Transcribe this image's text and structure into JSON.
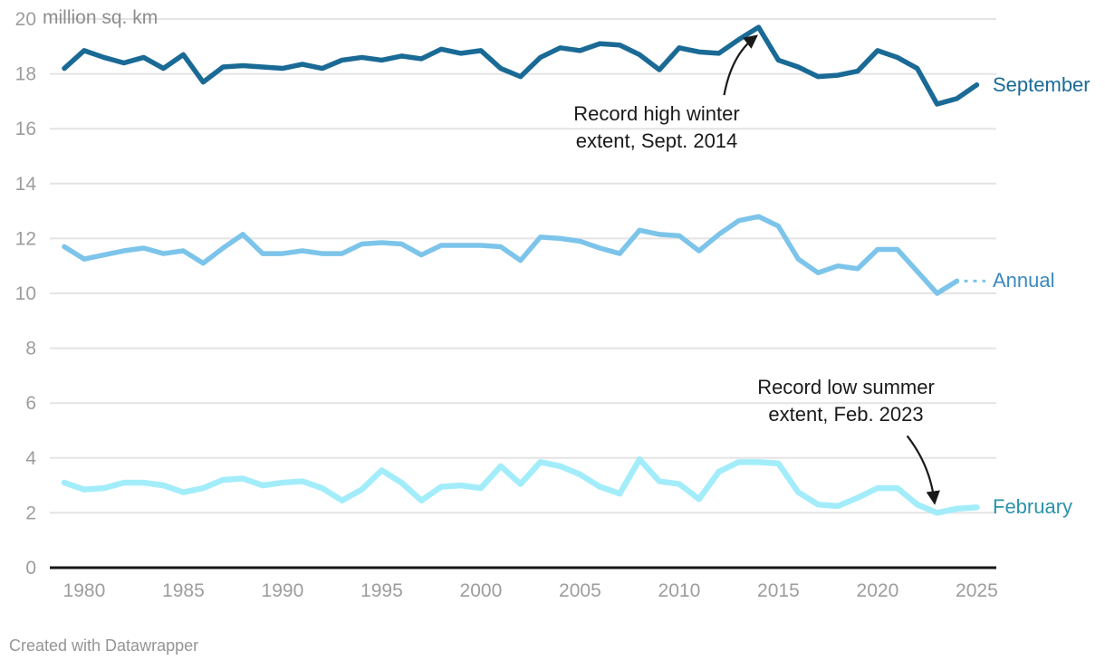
{
  "chart_data": {
    "type": "line",
    "unit_label": "million sq. km",
    "ylim": [
      0,
      20
    ],
    "yticks": [
      0,
      2,
      4,
      6,
      8,
      10,
      12,
      14,
      16,
      18,
      20
    ],
    "xticks": [
      1980,
      1985,
      1990,
      1995,
      2000,
      2005,
      2010,
      2015,
      2020,
      2025
    ],
    "grid": true,
    "label_position": "right",
    "x": [
      1979,
      1980,
      1981,
      1982,
      1983,
      1984,
      1985,
      1986,
      1987,
      1988,
      1989,
      1990,
      1991,
      1992,
      1993,
      1994,
      1995,
      1996,
      1997,
      1998,
      1999,
      2000,
      2001,
      2002,
      2003,
      2004,
      2005,
      2006,
      2007,
      2008,
      2009,
      2010,
      2011,
      2012,
      2013,
      2014,
      2015,
      2016,
      2017,
      2018,
      2019,
      2020,
      2021,
      2022,
      2023,
      2024,
      2025
    ],
    "series": [
      {
        "name": "September",
        "color": "#1A6A96",
        "label_color": "#1A6A96",
        "values": [
          18.2,
          18.85,
          18.6,
          18.4,
          18.6,
          18.2,
          18.7,
          17.7,
          18.25,
          18.3,
          18.25,
          18.2,
          18.35,
          18.2,
          18.5,
          18.6,
          18.5,
          18.65,
          18.55,
          18.9,
          18.75,
          18.85,
          18.2,
          17.9,
          18.6,
          18.95,
          18.85,
          19.1,
          19.05,
          18.7,
          18.15,
          18.95,
          18.8,
          18.75,
          19.25,
          19.7,
          18.5,
          18.25,
          17.9,
          17.95,
          18.1,
          18.85,
          18.6,
          18.2,
          16.9,
          17.1,
          17.6
        ]
      },
      {
        "name": "Annual",
        "color": "#7CC4EA",
        "label_color": "#3C88C0",
        "dashed_leader": true,
        "values": [
          11.7,
          11.25,
          11.4,
          11.55,
          11.65,
          11.45,
          11.55,
          11.1,
          11.65,
          12.15,
          11.45,
          11.45,
          11.55,
          11.45,
          11.45,
          11.8,
          11.85,
          11.8,
          11.4,
          11.75,
          11.75,
          11.75,
          11.7,
          11.2,
          12.05,
          12.0,
          11.9,
          11.65,
          11.45,
          12.3,
          12.15,
          12.1,
          11.55,
          12.15,
          12.65,
          12.8,
          12.45,
          11.25,
          10.75,
          11.0,
          10.9,
          11.6,
          11.6,
          10.8,
          10.0,
          10.45
        ]
      },
      {
        "name": "February",
        "color": "#A3EDFA",
        "label_color": "#2B93A8",
        "values": [
          3.1,
          2.85,
          2.9,
          3.1,
          3.1,
          3.0,
          2.75,
          2.9,
          3.2,
          3.25,
          3.0,
          3.1,
          3.15,
          2.9,
          2.45,
          2.85,
          3.55,
          3.1,
          2.45,
          2.95,
          3.0,
          2.9,
          3.7,
          3.05,
          3.85,
          3.7,
          3.4,
          2.95,
          2.7,
          3.95,
          3.15,
          3.05,
          2.5,
          3.5,
          3.85,
          3.85,
          3.8,
          2.75,
          2.3,
          2.25,
          2.55,
          2.9,
          2.9,
          2.3,
          2.0,
          2.15,
          2.2
        ]
      }
    ],
    "annotations": [
      {
        "text_lines": [
          "Record high winter",
          "extent, Sept. 2014"
        ],
        "target": {
          "series": "September",
          "year": 2014,
          "value": 19.7
        }
      },
      {
        "text_lines": [
          "Record low summer",
          "extent, Feb. 2023"
        ],
        "target": {
          "series": "February",
          "year": 2023,
          "value": 2.0
        }
      }
    ],
    "colors": {
      "gridline": "#e4e4e4",
      "axis_line": "#161616",
      "tick_label": "#9d9d9d",
      "annotation_text": "#1a1a1a"
    }
  },
  "footer": {
    "credit": "Created with Datawrapper"
  }
}
